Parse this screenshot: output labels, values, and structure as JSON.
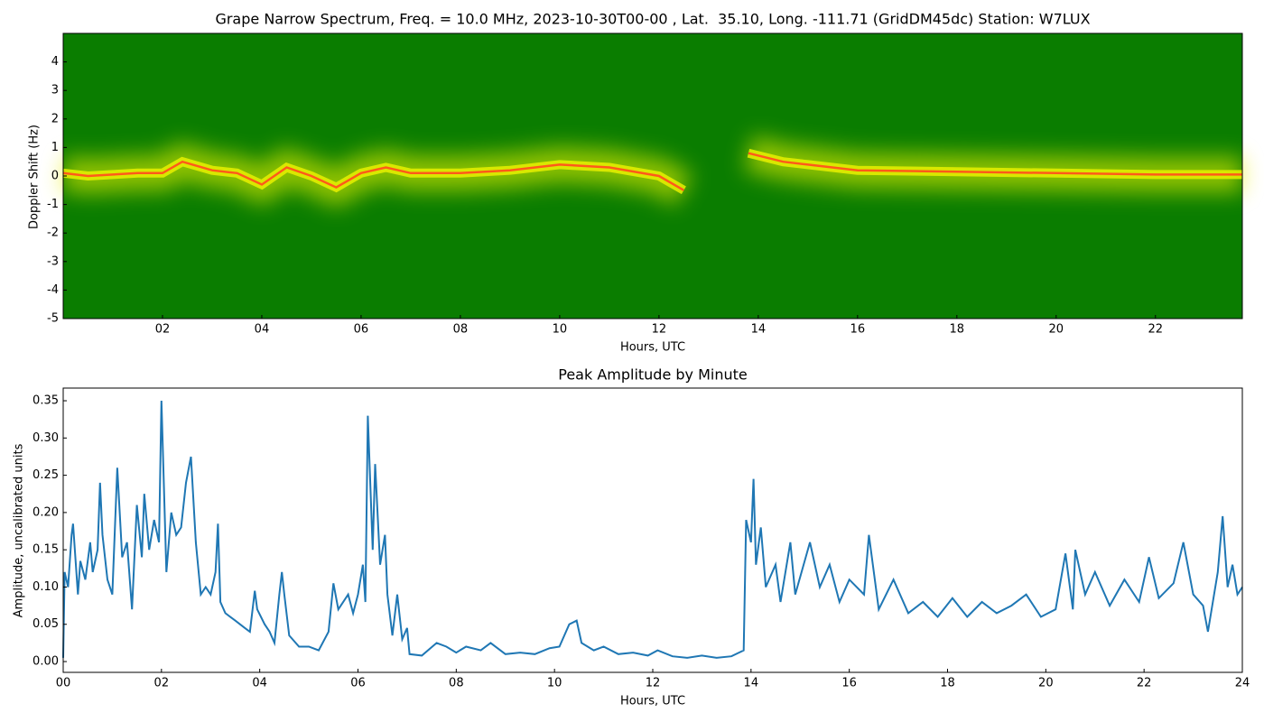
{
  "chart_data": [
    {
      "type": "spectrogram",
      "title": "Grape Narrow Spectrum, Freq. = 10.0 MHz, 2023-10-30T00-00 , Lat.  35.10, Long. -111.71 (GridDM45dc) Station: W7LUX",
      "xlabel": "Hours, UTC",
      "ylabel": "Doppler Shift (Hz)",
      "xlim": [
        0,
        23.75
      ],
      "ylim": [
        -5,
        5
      ],
      "xticks": [
        {
          "value": 2,
          "label": "02"
        },
        {
          "value": 4,
          "label": "04"
        },
        {
          "value": 6,
          "label": "06"
        },
        {
          "value": 8,
          "label": "08"
        },
        {
          "value": 10,
          "label": "10"
        },
        {
          "value": 12,
          "label": "12"
        },
        {
          "value": 14,
          "label": "14"
        },
        {
          "value": 16,
          "label": "16"
        },
        {
          "value": 18,
          "label": "18"
        },
        {
          "value": 20,
          "label": "20"
        },
        {
          "value": 22,
          "label": "22"
        }
      ],
      "yticks": [
        -5,
        -4,
        -3,
        -2,
        -1,
        0,
        1,
        2,
        3,
        4
      ],
      "background_color": "#0a7d00",
      "band_color": "#e8f000",
      "color": "#ff5a1a",
      "x": [
        0,
        0.5,
        1,
        1.5,
        2,
        2.4,
        3,
        3.5,
        4,
        4.5,
        5,
        5.5,
        6,
        6.5,
        7,
        8,
        9,
        10,
        11,
        12,
        12.5,
        13.2,
        13.8,
        14.5,
        15,
        16,
        18,
        20,
        22,
        23.75
      ],
      "values": [
        0.1,
        0,
        0.05,
        0.1,
        0.1,
        0.5,
        0.2,
        0.1,
        -0.3,
        0.3,
        0,
        -0.4,
        0.1,
        0.3,
        0.1,
        0.1,
        0.2,
        0.4,
        0.3,
        0,
        -0.5,
        null,
        0.8,
        0.5,
        0.4,
        0.2,
        0.15,
        0.1,
        0.05,
        0.05
      ]
    },
    {
      "type": "line",
      "title": "Peak Amplitude by Minute",
      "xlabel": "Hours, UTC",
      "ylabel": "Amplitude, uncalibrated units",
      "xlim": [
        0,
        24
      ],
      "ylim": [
        -0.0145,
        0.367
      ],
      "xticks": [
        {
          "value": 0,
          "label": "00"
        },
        {
          "value": 2,
          "label": "02"
        },
        {
          "value": 4,
          "label": "04"
        },
        {
          "value": 6,
          "label": "06"
        },
        {
          "value": 8,
          "label": "08"
        },
        {
          "value": 10,
          "label": "10"
        },
        {
          "value": 12,
          "label": "12"
        },
        {
          "value": 14,
          "label": "14"
        },
        {
          "value": 16,
          "label": "16"
        },
        {
          "value": 18,
          "label": "18"
        },
        {
          "value": 20,
          "label": "20"
        },
        {
          "value": 22,
          "label": "22"
        },
        {
          "value": 24,
          "label": "24"
        }
      ],
      "yticks": [
        {
          "value": 0,
          "label": "0.00"
        },
        {
          "value": 0.05,
          "label": "0.05"
        },
        {
          "value": 0.1,
          "label": "0.10"
        },
        {
          "value": 0.15,
          "label": "0.15"
        },
        {
          "value": 0.2,
          "label": "0.20"
        },
        {
          "value": 0.25,
          "label": "0.25"
        },
        {
          "value": 0.3,
          "label": "0.30"
        },
        {
          "value": 0.35,
          "label": "0.35"
        }
      ],
      "color": "#1f77b4",
      "x": [
        0,
        0.03,
        0.1,
        0.17,
        0.2,
        0.3,
        0.35,
        0.45,
        0.55,
        0.6,
        0.7,
        0.75,
        0.8,
        0.9,
        1.0,
        1.1,
        1.2,
        1.3,
        1.4,
        1.5,
        1.6,
        1.65,
        1.75,
        1.85,
        1.95,
        2.0,
        2.1,
        2.2,
        2.3,
        2.4,
        2.5,
        2.6,
        2.7,
        2.8,
        2.9,
        3.0,
        3.1,
        3.15,
        3.2,
        3.3,
        3.5,
        3.7,
        3.8,
        3.9,
        3.95,
        4.1,
        4.2,
        4.3,
        4.4,
        4.45,
        4.5,
        4.6,
        4.8,
        5.0,
        5.2,
        5.4,
        5.5,
        5.6,
        5.8,
        5.9,
        6.0,
        6.1,
        6.15,
        6.2,
        6.3,
        6.35,
        6.45,
        6.55,
        6.6,
        6.7,
        6.8,
        6.9,
        7.0,
        7.05,
        7.3,
        7.6,
        7.8,
        8.0,
        8.2,
        8.5,
        8.7,
        9.0,
        9.3,
        9.6,
        9.9,
        10.1,
        10.3,
        10.45,
        10.55,
        10.8,
        11.0,
        11.3,
        11.6,
        11.9,
        12.1,
        12.4,
        12.7,
        13.0,
        13.3,
        13.6,
        13.85,
        13.9,
        14.0,
        14.05,
        14.1,
        14.2,
        14.3,
        14.5,
        14.6,
        14.8,
        14.9,
        15.2,
        15.4,
        15.6,
        15.8,
        16.0,
        16.3,
        16.4,
        16.6,
        16.9,
        17.2,
        17.5,
        17.8,
        18.1,
        18.4,
        18.7,
        19.0,
        19.3,
        19.6,
        19.9,
        20.2,
        20.4,
        20.55,
        20.6,
        20.8,
        21.0,
        21.3,
        21.6,
        21.9,
        22.1,
        22.3,
        22.6,
        22.8,
        23.0,
        23.2,
        23.3,
        23.5,
        23.6,
        23.7,
        23.8,
        23.9,
        24.0
      ],
      "values": [
        0.005,
        0.12,
        0.1,
        0.17,
        0.185,
        0.09,
        0.135,
        0.11,
        0.16,
        0.12,
        0.15,
        0.24,
        0.17,
        0.11,
        0.09,
        0.26,
        0.14,
        0.16,
        0.07,
        0.21,
        0.14,
        0.225,
        0.15,
        0.19,
        0.16,
        0.35,
        0.12,
        0.2,
        0.17,
        0.18,
        0.24,
        0.275,
        0.16,
        0.09,
        0.1,
        0.09,
        0.12,
        0.185,
        0.08,
        0.065,
        0.055,
        0.045,
        0.04,
        0.095,
        0.07,
        0.05,
        0.04,
        0.025,
        0.09,
        0.12,
        0.09,
        0.035,
        0.02,
        0.02,
        0.015,
        0.04,
        0.105,
        0.07,
        0.09,
        0.065,
        0.09,
        0.13,
        0.08,
        0.33,
        0.15,
        0.265,
        0.13,
        0.17,
        0.09,
        0.035,
        0.09,
        0.03,
        0.045,
        0.01,
        0.008,
        0.025,
        0.02,
        0.012,
        0.02,
        0.015,
        0.025,
        0.01,
        0.012,
        0.01,
        0.018,
        0.02,
        0.05,
        0.055,
        0.025,
        0.015,
        0.02,
        0.01,
        0.012,
        0.008,
        0.015,
        0.007,
        0.005,
        0.008,
        0.005,
        0.007,
        0.015,
        0.19,
        0.16,
        0.245,
        0.13,
        0.18,
        0.1,
        0.13,
        0.08,
        0.16,
        0.09,
        0.16,
        0.1,
        0.13,
        0.08,
        0.11,
        0.09,
        0.17,
        0.07,
        0.11,
        0.065,
        0.08,
        0.06,
        0.085,
        0.06,
        0.08,
        0.065,
        0.075,
        0.09,
        0.06,
        0.07,
        0.145,
        0.07,
        0.15,
        0.09,
        0.12,
        0.075,
        0.11,
        0.08,
        0.14,
        0.085,
        0.105,
        0.16,
        0.09,
        0.075,
        0.04,
        0.12,
        0.195,
        0.1,
        0.13,
        0.09,
        0.1
      ]
    }
  ]
}
